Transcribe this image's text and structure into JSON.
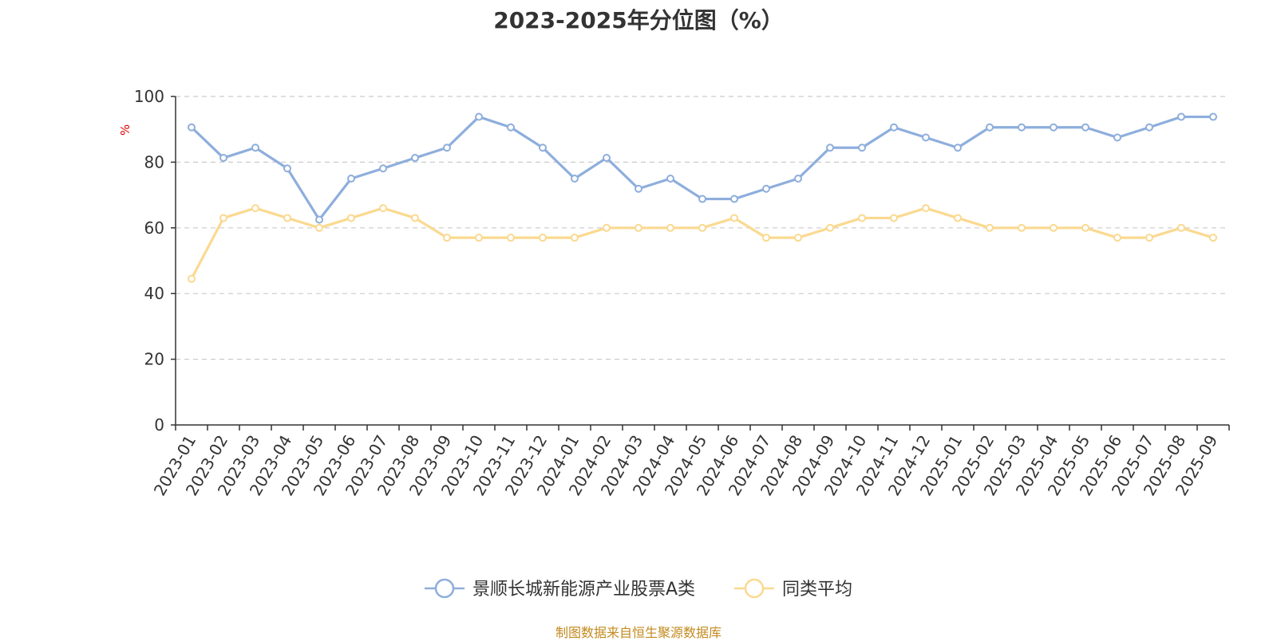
{
  "chart_data": {
    "type": "line",
    "title": "2023-2025年分位图（%）",
    "ylabel": "%",
    "xlabel": "",
    "ylim": [
      0,
      100
    ],
    "yticks": [
      0,
      20,
      40,
      60,
      80,
      100
    ],
    "grid": true,
    "legend_position": "bottom",
    "categories": [
      "2023-01",
      "2023-02",
      "2023-03",
      "2023-04",
      "2023-05",
      "2023-06",
      "2023-07",
      "2023-08",
      "2023-09",
      "2023-10",
      "2023-11",
      "2023-12",
      "2024-01",
      "2024-02",
      "2024-03",
      "2024-04",
      "2024-05",
      "2024-06",
      "2024-07",
      "2024-08",
      "2024-09",
      "2024-10",
      "2024-11",
      "2024-12",
      "2025-01",
      "2025-02",
      "2025-03",
      "2025-04",
      "2025-05",
      "2025-06",
      "2025-07",
      "2025-08",
      "2025-09"
    ],
    "series": [
      {
        "name": "景顺长城新能源产业股票A类",
        "color": "#8eaedc",
        "values": [
          90.6,
          81.3,
          84.4,
          78.1,
          62.5,
          75.0,
          78.1,
          81.3,
          84.4,
          93.8,
          90.6,
          84.4,
          75.0,
          81.3,
          71.9,
          75.0,
          68.8,
          68.8,
          71.9,
          75.0,
          84.4,
          84.4,
          90.6,
          87.5,
          84.4,
          90.6,
          90.6,
          90.6,
          90.6,
          87.5,
          90.6,
          93.8,
          93.8
        ]
      },
      {
        "name": "同类平均",
        "color": "#fad990",
        "values": [
          44.5,
          63.0,
          66.0,
          63.0,
          60.0,
          63.0,
          66.0,
          63.0,
          57.0,
          57.0,
          57.0,
          57.0,
          57.0,
          60.0,
          60.0,
          60.0,
          60.0,
          63.0,
          57.0,
          57.0,
          60.0,
          63.0,
          63.0,
          66.0,
          63.0,
          60.0,
          60.0,
          60.0,
          60.0,
          57.0,
          57.0,
          60.0,
          57.0
        ]
      }
    ],
    "source": "制图数据来自恒生聚源数据库"
  }
}
